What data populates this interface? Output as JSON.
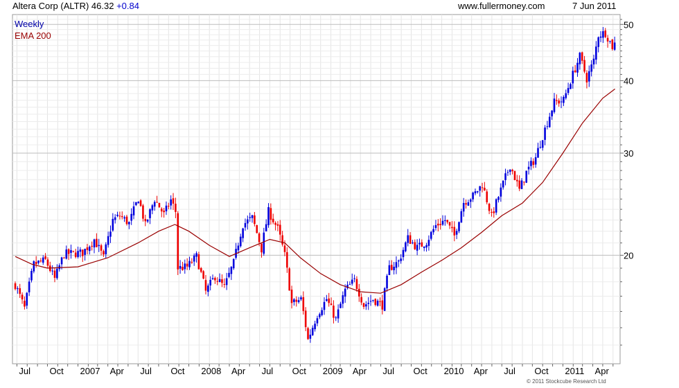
{
  "header": {
    "title": "Altera Corp (ALTR) 46.32",
    "change": "+0.84",
    "site": "www.fullermoney.com",
    "date": "7 Jun 2011"
  },
  "legend": {
    "period": "Weekly",
    "ema": "EMA 200"
  },
  "copyright": "© 2011 Stockcube Research Ltd",
  "colors": {
    "up": "#0000dd",
    "down": "#ee0000",
    "ema": "#990000",
    "grid": "#cccccc"
  },
  "chart_data": {
    "type": "candlestick",
    "xlabel": "",
    "ylabel": "",
    "ylim": [
      13,
      52
    ],
    "y_ticks": [
      20,
      30,
      40,
      50
    ],
    "x_ticks": [
      "Jul",
      "Oct",
      "2007",
      "Apr",
      "Jul",
      "Oct",
      "2008",
      "Apr",
      "Jul",
      "Oct",
      "2009",
      "Apr",
      "Jul",
      "Oct",
      "2010",
      "Apr",
      "Jul",
      "Oct",
      "2011",
      "Apr"
    ],
    "grid": true,
    "legend": "top-left",
    "ema_200": [
      {
        "x": "2006-06-26",
        "y": 19.9
      },
      {
        "x": "2006-08-15",
        "y": 19.3
      },
      {
        "x": "2006-10-01",
        "y": 19.0
      },
      {
        "x": "2007-01-01",
        "y": 19.1
      },
      {
        "x": "2007-04-01",
        "y": 19.8
      },
      {
        "x": "2007-07-01",
        "y": 21.0
      },
      {
        "x": "2007-09-01",
        "y": 22.0
      },
      {
        "x": "2007-10-20",
        "y": 22.6
      },
      {
        "x": "2007-12-01",
        "y": 22.0
      },
      {
        "x": "2008-02-01",
        "y": 20.8
      },
      {
        "x": "2008-04-01",
        "y": 19.9
      },
      {
        "x": "2008-06-01",
        "y": 20.6
      },
      {
        "x": "2008-08-01",
        "y": 21.3
      },
      {
        "x": "2008-09-15",
        "y": 21.0
      },
      {
        "x": "2008-11-01",
        "y": 19.8
      },
      {
        "x": "2009-01-01",
        "y": 18.6
      },
      {
        "x": "2009-03-01",
        "y": 17.8
      },
      {
        "x": "2009-05-01",
        "y": 17.3
      },
      {
        "x": "2009-07-01",
        "y": 17.2
      },
      {
        "x": "2009-09-01",
        "y": 17.8
      },
      {
        "x": "2009-11-01",
        "y": 18.7
      },
      {
        "x": "2010-01-01",
        "y": 19.6
      },
      {
        "x": "2010-03-01",
        "y": 20.6
      },
      {
        "x": "2010-05-01",
        "y": 21.9
      },
      {
        "x": "2010-07-01",
        "y": 23.4
      },
      {
        "x": "2010-09-01",
        "y": 24.6
      },
      {
        "x": "2010-11-01",
        "y": 26.7
      },
      {
        "x": "2011-01-01",
        "y": 30.0
      },
      {
        "x": "2011-03-01",
        "y": 33.8
      },
      {
        "x": "2011-05-01",
        "y": 37.3
      },
      {
        "x": "2011-06-07",
        "y": 38.7
      }
    ],
    "price_path": [
      {
        "x": "2006-06-26",
        "y": 17.8
      },
      {
        "x": "2006-07-24",
        "y": 16.2
      },
      {
        "x": "2006-08-21",
        "y": 19.3
      },
      {
        "x": "2006-09-25",
        "y": 19.6
      },
      {
        "x": "2006-10-23",
        "y": 18.2
      },
      {
        "x": "2006-11-20",
        "y": 20.1
      },
      {
        "x": "2007-01-15",
        "y": 20.2
      },
      {
        "x": "2007-02-19",
        "y": 21.3
      },
      {
        "x": "2007-03-19",
        "y": 19.8
      },
      {
        "x": "2007-04-16",
        "y": 23.0
      },
      {
        "x": "2007-05-07",
        "y": 23.4
      },
      {
        "x": "2007-06-04",
        "y": 22.7
      },
      {
        "x": "2007-07-02",
        "y": 25.1
      },
      {
        "x": "2007-07-23",
        "y": 22.5
      },
      {
        "x": "2007-08-20",
        "y": 25.0
      },
      {
        "x": "2007-09-17",
        "y": 23.5
      },
      {
        "x": "2007-10-08",
        "y": 24.9
      },
      {
        "x": "2007-10-22",
        "y": 23.8
      },
      {
        "x": "2007-10-29",
        "y": 19.0
      },
      {
        "x": "2007-11-26",
        "y": 19.1
      },
      {
        "x": "2007-12-24",
        "y": 19.9
      },
      {
        "x": "2008-01-21",
        "y": 17.3
      },
      {
        "x": "2008-02-18",
        "y": 18.4
      },
      {
        "x": "2008-03-17",
        "y": 17.6
      },
      {
        "x": "2008-04-14",
        "y": 19.4
      },
      {
        "x": "2008-05-12",
        "y": 22.6
      },
      {
        "x": "2008-06-09",
        "y": 23.2
      },
      {
        "x": "2008-07-07",
        "y": 20.5
      },
      {
        "x": "2008-07-28",
        "y": 23.8
      },
      {
        "x": "2008-08-25",
        "y": 22.2
      },
      {
        "x": "2008-09-15",
        "y": 20.0
      },
      {
        "x": "2008-10-06",
        "y": 16.5
      },
      {
        "x": "2008-11-03",
        "y": 16.8
      },
      {
        "x": "2008-11-24",
        "y": 14.3
      },
      {
        "x": "2008-12-22",
        "y": 15.8
      },
      {
        "x": "2009-01-19",
        "y": 16.8
      },
      {
        "x": "2009-02-16",
        "y": 15.5
      },
      {
        "x": "2009-03-16",
        "y": 17.4
      },
      {
        "x": "2009-04-13",
        "y": 18.1
      },
      {
        "x": "2009-05-11",
        "y": 16.4
      },
      {
        "x": "2009-06-08",
        "y": 16.8
      },
      {
        "x": "2009-07-06",
        "y": 16.4
      },
      {
        "x": "2009-07-27",
        "y": 19.0
      },
      {
        "x": "2009-08-24",
        "y": 19.5
      },
      {
        "x": "2009-09-21",
        "y": 21.4
      },
      {
        "x": "2009-10-19",
        "y": 20.6
      },
      {
        "x": "2009-11-16",
        "y": 21.1
      },
      {
        "x": "2009-12-14",
        "y": 22.5
      },
      {
        "x": "2010-01-11",
        "y": 23.0
      },
      {
        "x": "2010-02-08",
        "y": 21.6
      },
      {
        "x": "2010-03-08",
        "y": 24.7
      },
      {
        "x": "2010-04-05",
        "y": 25.3
      },
      {
        "x": "2010-05-03",
        "y": 26.5
      },
      {
        "x": "2010-05-31",
        "y": 23.3
      },
      {
        "x": "2010-06-28",
        "y": 25.9
      },
      {
        "x": "2010-07-26",
        "y": 28.6
      },
      {
        "x": "2010-08-23",
        "y": 25.9
      },
      {
        "x": "2010-09-13",
        "y": 27.8
      },
      {
        "x": "2010-10-11",
        "y": 29.5
      },
      {
        "x": "2010-11-08",
        "y": 33.0
      },
      {
        "x": "2010-12-06",
        "y": 36.7
      },
      {
        "x": "2011-01-03",
        "y": 37.0
      },
      {
        "x": "2011-01-24",
        "y": 40.0
      },
      {
        "x": "2011-02-21",
        "y": 44.0
      },
      {
        "x": "2011-03-14",
        "y": 40.3
      },
      {
        "x": "2011-04-04",
        "y": 43.3
      },
      {
        "x": "2011-04-18",
        "y": 48.0
      },
      {
        "x": "2011-05-09",
        "y": 48.4
      },
      {
        "x": "2011-05-30",
        "y": 45.8
      },
      {
        "x": "2011-06-06",
        "y": 46.3
      }
    ]
  }
}
